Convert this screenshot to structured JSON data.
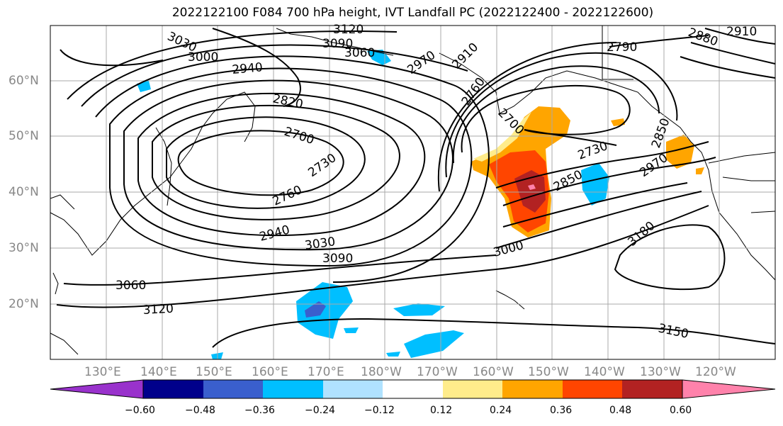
{
  "title": "2022122100 F084 700 hPa height, IVT Landfall PC (2022122400 - 2022122600)",
  "lat_labels": [
    "60°N",
    "50°N",
    "40°N",
    "30°N",
    "20°N"
  ],
  "lon_labels": [
    "130°E",
    "140°E",
    "150°E",
    "160°E",
    "170°E",
    "180°W",
    "170°W",
    "160°W",
    "150°W",
    "140°W",
    "130°W",
    "120°W"
  ],
  "contour_labels": [
    "3030",
    "3000",
    "2940",
    "2820",
    "2700",
    "2730",
    "2760",
    "2940",
    "3030",
    "3090",
    "3060",
    "3120",
    "3120",
    "3090",
    "3060",
    "2970",
    "2910",
    "2760",
    "2700",
    "2790",
    "2880",
    "2910",
    "2730",
    "2850",
    "2850",
    "2970",
    "3000",
    "3180",
    "3150"
  ],
  "colorbar": {
    "ticks": [
      "−0.60",
      "−0.48",
      "−0.36",
      "−0.24",
      "−0.12",
      "0.12",
      "0.24",
      "0.36",
      "0.48",
      "0.60"
    ],
    "colors": [
      "#9932cc",
      "#00008b",
      "#3a5fcd",
      "#00bfff",
      "#b0e2ff",
      "#ffffff",
      "#ffec8b",
      "#ffa500",
      "#ff4500",
      "#b22222",
      "#ff82ab"
    ]
  }
}
